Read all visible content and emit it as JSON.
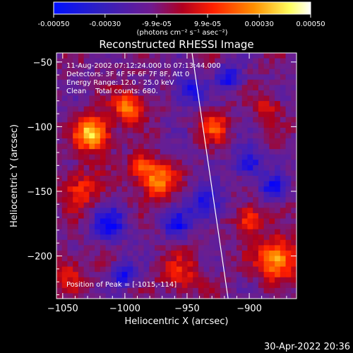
{
  "chart_data": {
    "type": "heatmap",
    "title": "Reconstructed RHESSI Image",
    "xlabel": "Heliocentric X (arcsec)",
    "ylabel": "Heliocentric Y (arcsec)",
    "xlim": [
      -1055,
      -862
    ],
    "ylim": [
      -233,
      -43
    ],
    "xticks": [
      -1050,
      -1000,
      -950,
      -900
    ],
    "yticks": [
      -50,
      -100,
      -150,
      -200
    ],
    "colorbar": {
      "range": [
        -0.0005,
        0.0005
      ],
      "ticks": [
        "-0.00050",
        "-0.00030",
        "-9.9e-05",
        "9.9e-05",
        "0.00030",
        "0.00050"
      ],
      "unit_label": "(photons cm⁻² s⁻¹ asec⁻²)",
      "colors": [
        "#0000ff",
        "#5a1a9a",
        "#d00000",
        "#ff8000",
        "#ffff70",
        "#ffffff"
      ]
    },
    "annotations": [
      "11-Aug-2002 07:12:24.000 to 07:13:44.000",
      "Detectors: 3F 4F 5F 6F 7F 8F, Att 0",
      "Energy Range: 12.0 - 25.0 keV",
      "Clean    Total counts: 680."
    ],
    "peak_text": "Position of Peak = [-1015,-114]",
    "limb_line": {
      "x": [
        -946,
        -917
      ],
      "y": [
        -43,
        -233
      ]
    },
    "grid": false
  },
  "timestamp": "30-Apr-2022 20:36"
}
